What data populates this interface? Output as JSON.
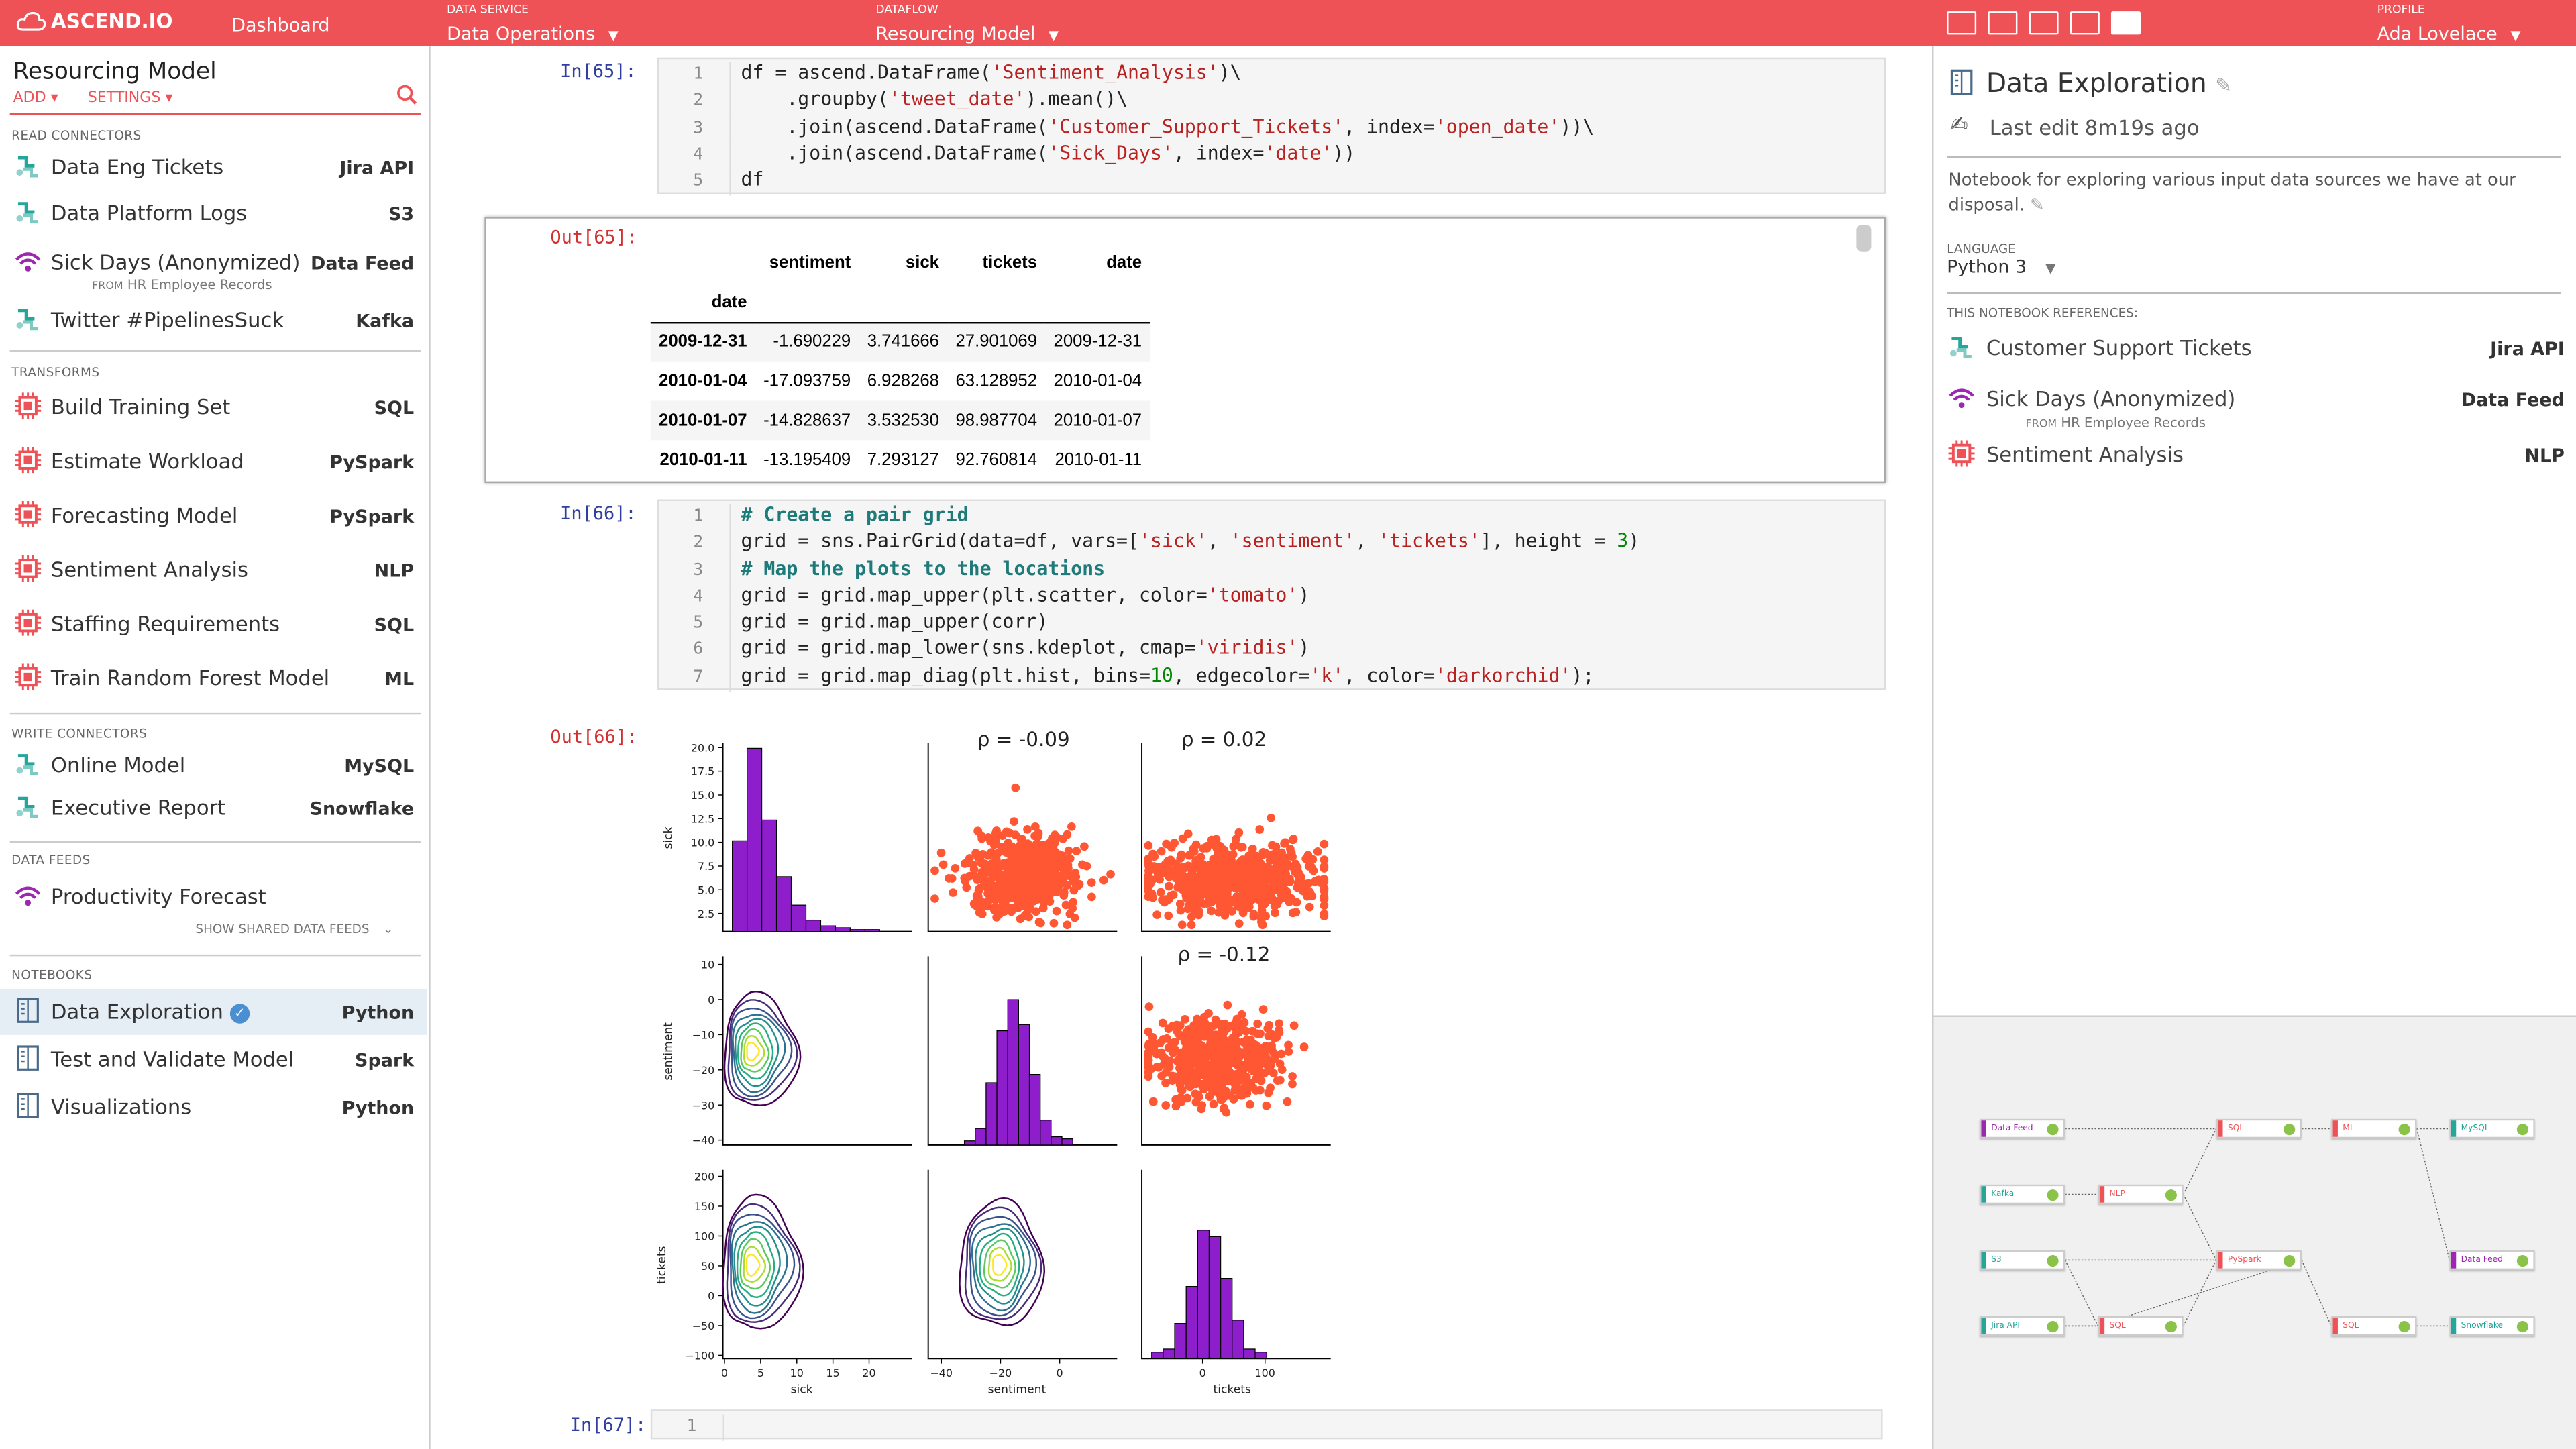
{
  "topbar": {
    "logo": "ASCEND.IO",
    "dashboard": "Dashboard",
    "data_service_label": "DATA SERVICE",
    "data_service": "Data Operations",
    "dataflow_label": "DATAFLOW",
    "dataflow": "Resourcing Model",
    "profile_label": "PROFILE",
    "profile": "Ada Lovelace"
  },
  "sidebar": {
    "title": "Resourcing Model",
    "add": "ADD",
    "settings": "SETTINGS",
    "sections": {
      "read": "READ CONNECTORS",
      "transforms": "TRANSFORMS",
      "write": "WRITE CONNECTORS",
      "feeds": "DATA FEEDS",
      "notebooks": "NOTEBOOKS"
    },
    "read": [
      {
        "name": "Data Eng Tickets",
        "type": "Jira API"
      },
      {
        "name": "Data Platform Logs",
        "type": "S3"
      },
      {
        "name": "Sick Days (Anonymized)",
        "type": "Data Feed",
        "from_label": "FROM",
        "from": "HR Employee Records"
      },
      {
        "name": "Twitter #PipelinesSuck",
        "type": "Kafka"
      }
    ],
    "transforms": [
      {
        "name": "Build Training Set",
        "type": "SQL"
      },
      {
        "name": "Estimate Workload",
        "type": "PySpark"
      },
      {
        "name": "Forecasting Model",
        "type": "PySpark"
      },
      {
        "name": "Sentiment Analysis",
        "type": "NLP"
      },
      {
        "name": "Staffing Requirements",
        "type": "SQL"
      },
      {
        "name": "Train Random Forest Model",
        "type": "ML"
      }
    ],
    "write": [
      {
        "name": "Online Model",
        "type": "MySQL"
      },
      {
        "name": "Executive Report",
        "type": "Snowflake"
      }
    ],
    "feeds": [
      {
        "name": "Productivity Forecast"
      }
    ],
    "show_shared": "SHOW SHARED DATA FEEDS",
    "notebooks": [
      {
        "name": "Data Exploration",
        "type": "Python"
      },
      {
        "name": "Test and Validate Model",
        "type": "Spark"
      },
      {
        "name": "Visualizations",
        "type": "Python"
      }
    ]
  },
  "cells": {
    "in65": "In[65]:",
    "out65": "Out[65]:",
    "in66": "In[66]:",
    "out66": "Out[66]:",
    "in67": "In[67]:",
    "table": {
      "cols": [
        "sentiment",
        "sick",
        "tickets",
        "date"
      ],
      "index_name": "date",
      "rows": [
        [
          "2009-12-31",
          "-1.690229",
          "3.741666",
          "27.901069",
          "2009-12-31"
        ],
        [
          "2010-01-04",
          "-17.093759",
          "6.928268",
          "63.128952",
          "2010-01-04"
        ],
        [
          "2010-01-07",
          "-14.828637",
          "3.532530",
          "98.987704",
          "2010-01-07"
        ],
        [
          "2010-01-11",
          "-13.195409",
          "7.293127",
          "92.760814",
          "2010-01-11"
        ]
      ]
    }
  },
  "plot": {
    "rho": [
      "ρ = -0.09",
      "ρ = 0.02",
      "ρ = -0.12"
    ],
    "xlabels": [
      "sick",
      "sentiment",
      "tickets"
    ],
    "ylabels": [
      "sick",
      "sentiment",
      "tickets"
    ],
    "sick_ticks": [
      "20.0",
      "17.5",
      "15.0",
      "12.5",
      "10.0",
      "7.5",
      "5.0",
      "2.5"
    ],
    "sent_ticks": [
      "10",
      "0",
      "−10",
      "−20",
      "−30",
      "−40"
    ],
    "tick_ticks": [
      "200",
      "150",
      "100",
      "50",
      "0",
      "−50",
      "−100"
    ],
    "x_sick": [
      "0",
      "5",
      "10",
      "15",
      "20"
    ],
    "x_sent": [
      "−40",
      "−20",
      "0"
    ],
    "x_tick": [
      "0",
      "100"
    ]
  },
  "right": {
    "title": "Data Exploration",
    "last_edit": "Last edit 8m19s ago",
    "description": "Notebook for exploring various input data sources we have at our disposal.",
    "language_label": "LANGUAGE",
    "language": "Python 3",
    "refs_label": "THIS NOTEBOOK REFERENCES:",
    "refs": [
      {
        "name": "Customer Support Tickets",
        "type": "Jira API"
      },
      {
        "name": "Sick Days (Anonymized)",
        "type": "Data Feed",
        "from_label": "FROM",
        "from": "HR Employee Records"
      },
      {
        "name": "Sentiment Analysis",
        "type": "NLP"
      }
    ]
  },
  "graph": {
    "nodes": [
      "Data Feed",
      "Kafka",
      "S3",
      "Jira API",
      "NLP",
      "SQL",
      "SQL",
      "PySpark",
      "ML",
      "SQL",
      "MySQL",
      "Data Feed",
      "Snowflake"
    ]
  },
  "colors": {
    "accent": "#ee5257",
    "feed": "#9c27b0",
    "connector": "#26a69a",
    "transform": "#ee5257",
    "scatter": "#ff5733",
    "hist": "#8e1ecb"
  }
}
